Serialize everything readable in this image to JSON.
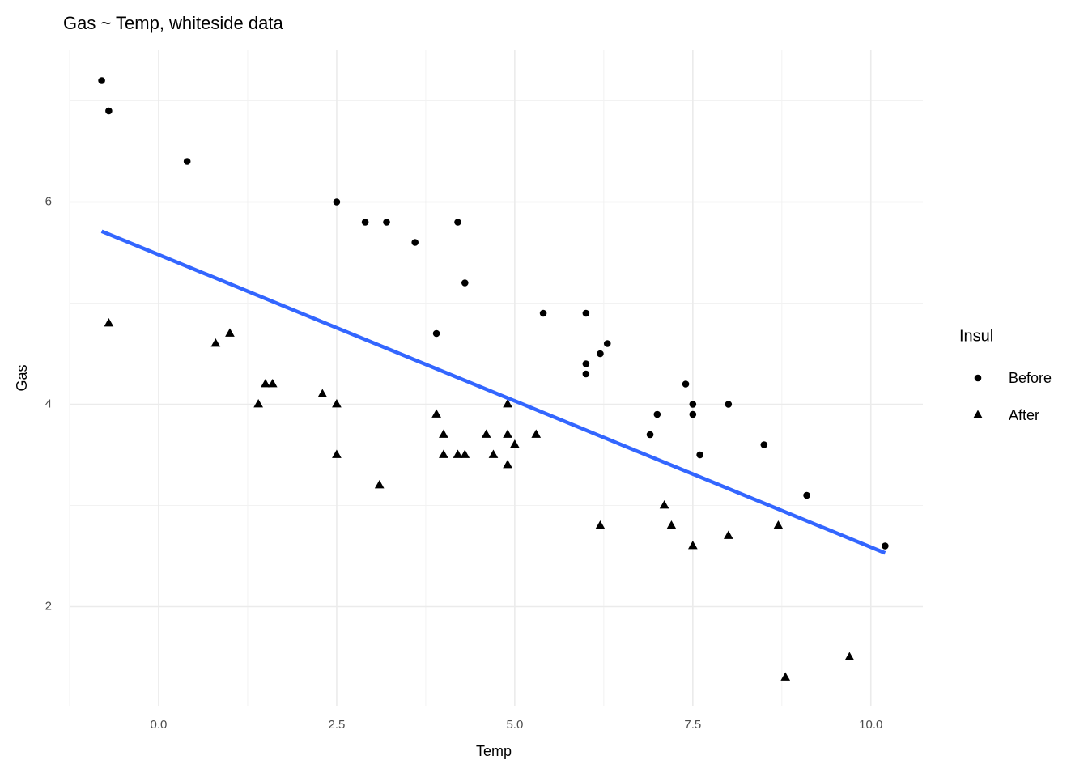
{
  "chart_data": {
    "type": "scatter",
    "title": "Gas ~ Temp, whiteside data",
    "x_label": "Temp",
    "y_label": "Gas",
    "legend_title": "Insul",
    "legend_position": "right",
    "grid": true,
    "xlim": [
      -1.25,
      10.73
    ],
    "ylim": [
      1.02,
      7.5
    ],
    "xticks": [
      {
        "value": 0,
        "label": "0.0"
      },
      {
        "value": 2.5,
        "label": "2.5"
      },
      {
        "value": 5,
        "label": "5.0"
      },
      {
        "value": 7.5,
        "label": "7.5"
      },
      {
        "value": 10,
        "label": "10.0"
      }
    ],
    "yticks": [
      2,
      4,
      6
    ],
    "series": [
      {
        "name": "Before",
        "color": "#000000",
        "shape": "circle",
        "x": [
          -0.8,
          -0.7,
          0.4,
          2.5,
          2.9,
          3.2,
          3.6,
          3.9,
          4.2,
          4.3,
          5.4,
          6.0,
          6.0,
          6.0,
          6.2,
          6.3,
          6.9,
          7.0,
          7.4,
          7.5,
          7.5,
          7.6,
          8.0,
          8.5,
          9.1,
          10.2
        ],
        "values": [
          7.2,
          6.9,
          6.4,
          6.0,
          5.8,
          5.8,
          5.6,
          4.7,
          5.8,
          5.2,
          4.9,
          4.9,
          4.3,
          4.4,
          4.5,
          4.6,
          3.7,
          3.9,
          4.2,
          4.0,
          3.9,
          3.5,
          4.0,
          3.6,
          3.1,
          2.6
        ]
      },
      {
        "name": "After",
        "color": "#000000",
        "shape": "triangle",
        "x": [
          -0.7,
          0.8,
          1.0,
          1.4,
          1.5,
          1.6,
          2.3,
          2.5,
          2.5,
          3.1,
          3.9,
          4.0,
          4.0,
          4.2,
          4.3,
          4.6,
          4.7,
          4.9,
          4.9,
          4.9,
          5.0,
          5.3,
          6.2,
          7.1,
          7.2,
          7.5,
          8.0,
          8.7,
          8.8,
          9.7
        ],
        "values": [
          4.8,
          4.6,
          4.7,
          4.0,
          4.2,
          4.2,
          4.1,
          4.0,
          3.5,
          3.2,
          3.9,
          3.5,
          3.7,
          3.5,
          3.5,
          3.7,
          3.5,
          3.4,
          3.7,
          4.0,
          3.6,
          3.7,
          2.8,
          3.0,
          2.8,
          2.6,
          2.7,
          2.8,
          1.3,
          1.5
        ]
      }
    ],
    "fit": {
      "x": [
        -0.8,
        10.2
      ],
      "values": [
        5.71,
        2.53
      ],
      "color": "#3366FF"
    }
  }
}
